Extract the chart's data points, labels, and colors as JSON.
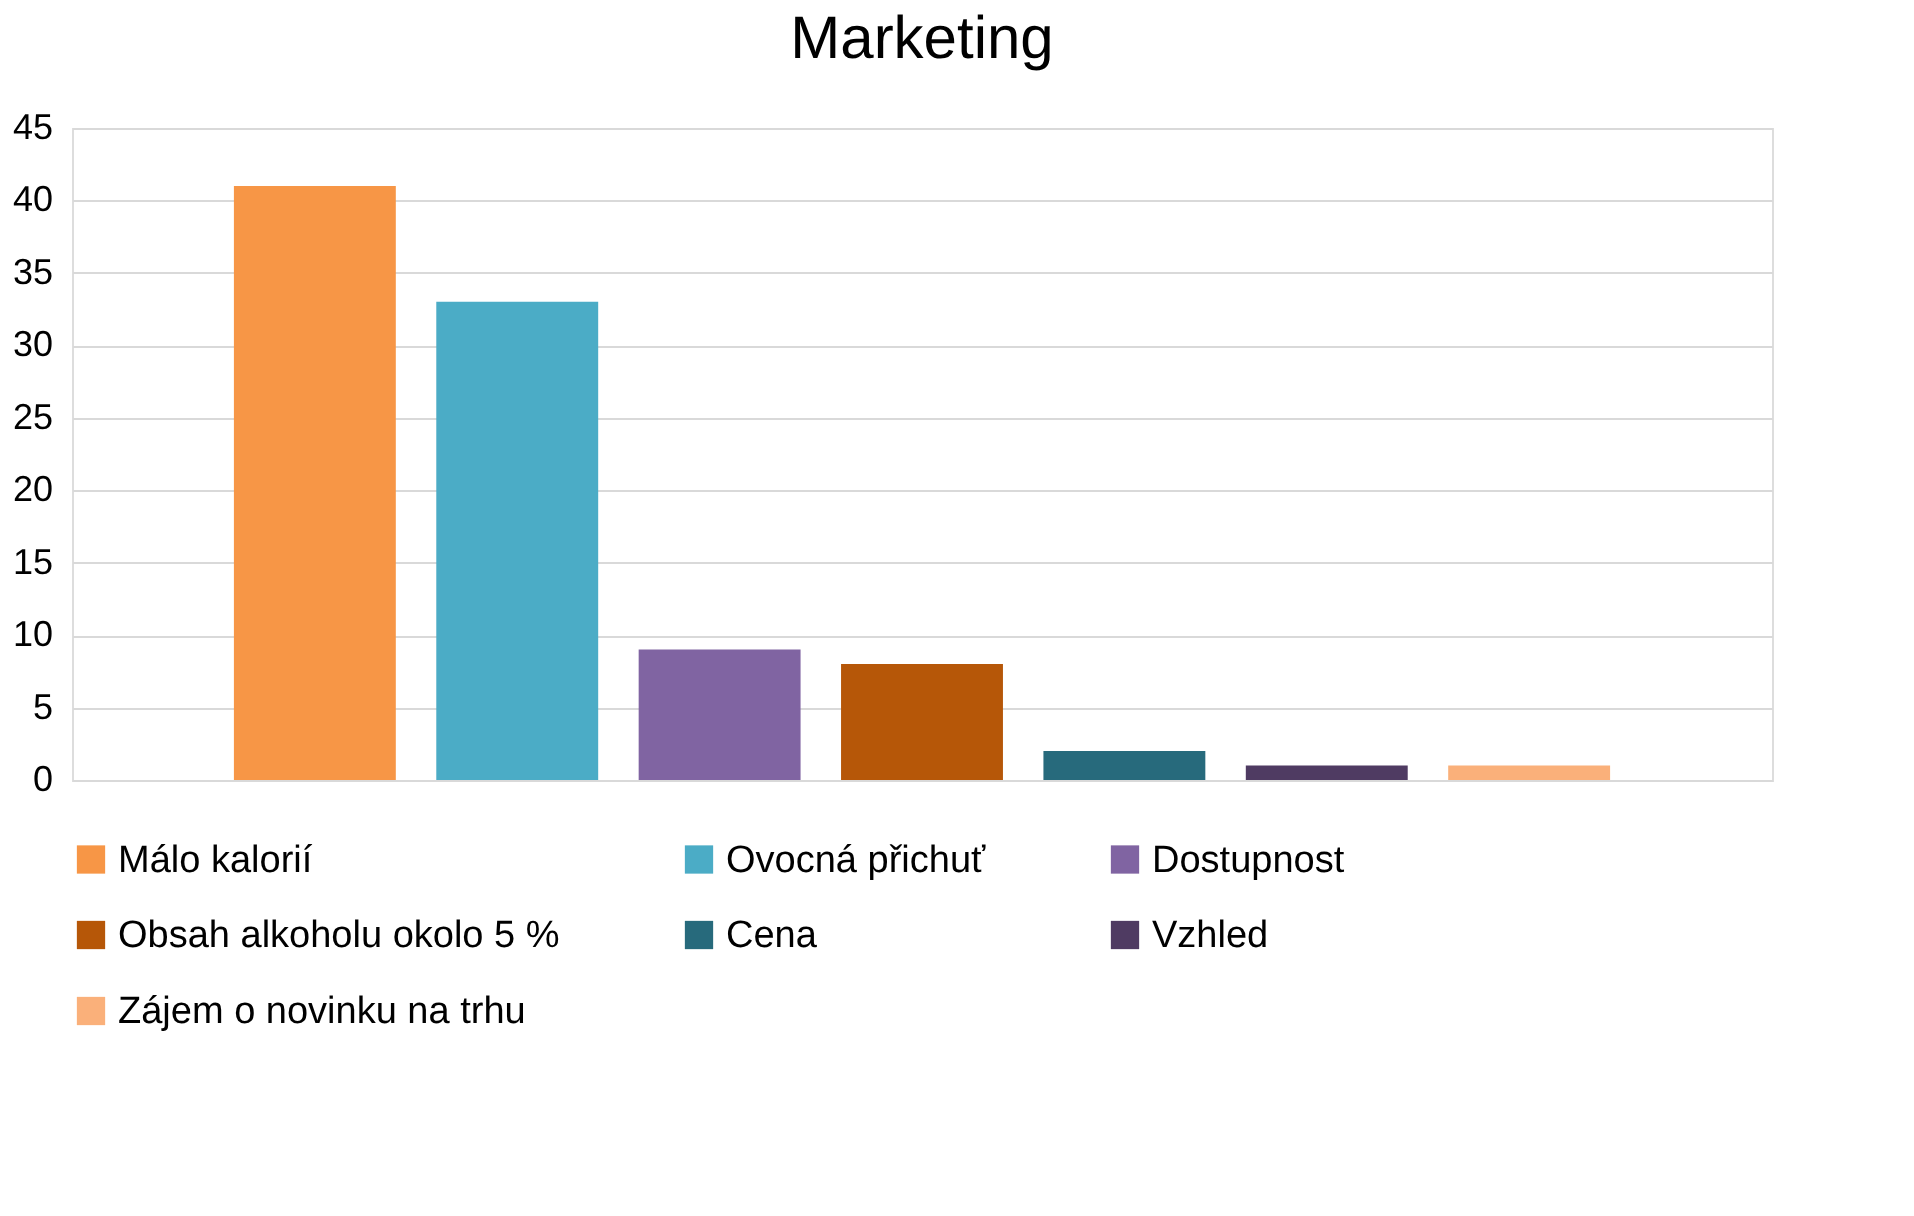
{
  "chart_data": {
    "type": "bar",
    "title": "Marketing",
    "categories": [
      null
    ],
    "series": [
      {
        "name": "Málo kalorií",
        "color": "#f79646",
        "values": [
          41
        ]
      },
      {
        "name": "Ovocná přichuť",
        "color": "#4bacc6",
        "values": [
          33
        ]
      },
      {
        "name": "Dostupnost",
        "color": "#8064a2",
        "values": [
          9
        ]
      },
      {
        "name": "Obsah alkoholu okolo 5 %",
        "color": "#b65708",
        "values": [
          8
        ]
      },
      {
        "name": "Cena",
        "color": "#276a7c",
        "values": [
          2
        ]
      },
      {
        "name": "Vzhled",
        "color": "#4f3b62",
        "values": [
          1
        ]
      },
      {
        "name": "Zájem o  novinku na trhu",
        "color": "#fab07a",
        "values": [
          1
        ]
      }
    ],
    "ylim": [
      0,
      45
    ],
    "yticks": [
      0,
      5,
      10,
      15,
      20,
      25,
      30,
      35,
      40,
      45
    ],
    "grid": "y",
    "legend": "bottom"
  }
}
